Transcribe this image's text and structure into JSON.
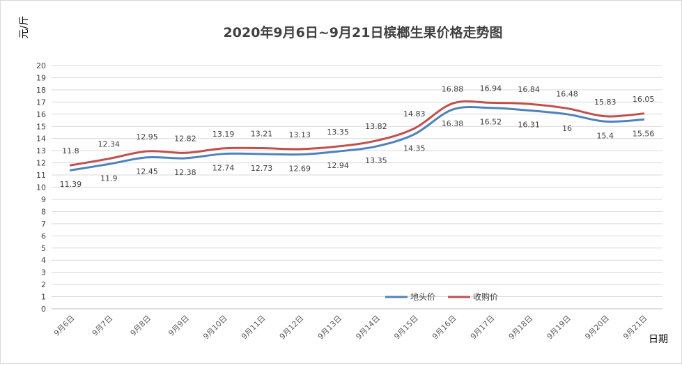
{
  "chart_data": {
    "type": "line",
    "title": "2020年9月6日~9月21日槟榔生果价格走势图",
    "ylabel": "元/斤",
    "xlabel": "日期",
    "ylim": [
      0,
      20
    ],
    "ytick_step": 1,
    "grid": true,
    "legend_position": "bottom-right (inside plot)",
    "categories": [
      "9月6日",
      "9月7日",
      "9月8日",
      "9月9日",
      "9月10日",
      "9月11日",
      "9月12日",
      "9月13日",
      "9月14日",
      "9月15日",
      "9月16日",
      "9月17日",
      "9月18日",
      "9月19日",
      "9月20日",
      "9月21日"
    ],
    "series": [
      {
        "name": "地头价",
        "color": "#4f81bd",
        "values": [
          11.39,
          11.9,
          12.45,
          12.38,
          12.74,
          12.73,
          12.69,
          12.94,
          13.35,
          14.35,
          16.38,
          16.52,
          16.31,
          16,
          15.4,
          15.56
        ],
        "value_labels": [
          "11.39",
          "11.9",
          "12.45",
          "12.38",
          "12.74",
          "12.73",
          "12.69",
          "12.94",
          "13.35",
          "14.35",
          "16.38",
          "16.52",
          "16.31",
          "16",
          "15.4",
          "15.56"
        ]
      },
      {
        "name": "收购价",
        "color": "#c0504d",
        "values": [
          11.8,
          12.34,
          12.95,
          12.82,
          13.19,
          13.21,
          13.13,
          13.35,
          13.82,
          14.83,
          16.88,
          16.94,
          16.84,
          16.48,
          15.83,
          16.05
        ],
        "value_labels": [
          "11.8",
          "12.34",
          "12.95",
          "12.82",
          "13.19",
          "13.21",
          "13.13",
          "13.35",
          "13.82",
          "14.83",
          "16.88",
          "16.94",
          "16.84",
          "16.48",
          "15.83",
          "16.05"
        ]
      }
    ]
  }
}
